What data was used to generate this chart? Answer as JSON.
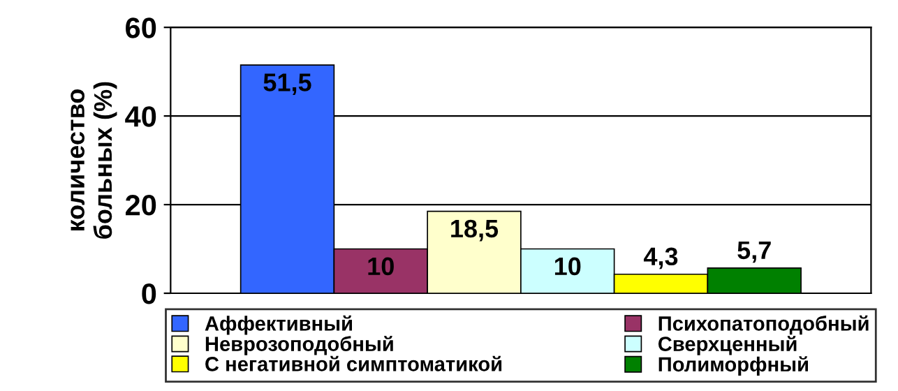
{
  "chart_data": {
    "type": "bar",
    "ylabel": "количество\nбольных (%)",
    "categories": [
      null
    ],
    "series": [
      {
        "name": "Аффективный",
        "color": "#3366ff",
        "values": [
          51.5
        ],
        "value_labels": [
          "51,5"
        ]
      },
      {
        "name": "Психопатоподобный",
        "color": "#993366",
        "values": [
          10
        ],
        "value_labels": [
          "10"
        ]
      },
      {
        "name": "Неврозоподобный",
        "color": "#ffffcc",
        "values": [
          18.5
        ],
        "value_labels": [
          "18,5"
        ]
      },
      {
        "name": "Сверхценный",
        "color": "#ccffff",
        "values": [
          10
        ],
        "value_labels": [
          "10"
        ]
      },
      {
        "name": "С негативной симптоматикой",
        "color": "#ffff00",
        "values": [
          4.3
        ],
        "value_labels": [
          "4,3"
        ]
      },
      {
        "name": "Полиморфный",
        "color": "#008000",
        "values": [
          5.7
        ],
        "value_labels": [
          "5,7"
        ]
      }
    ],
    "ylim": [
      0,
      60
    ],
    "yticks": [
      0,
      20,
      40,
      60
    ],
    "grid": "y",
    "legend": "bottom"
  }
}
